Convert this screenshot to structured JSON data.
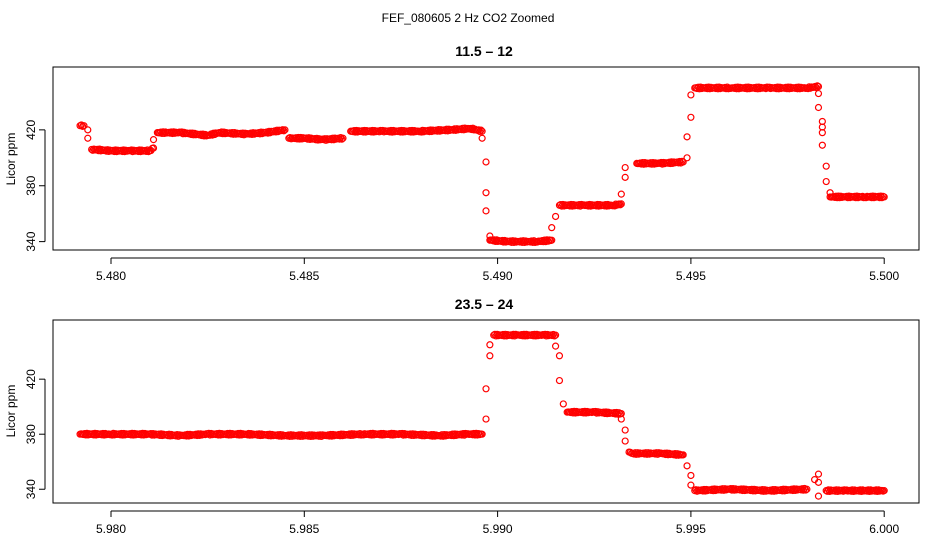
{
  "figure_title": "FEF_080605  2 Hz CO2 Zoomed",
  "colors": {
    "points": "#ff0000",
    "axis": "#000000",
    "background": "#ffffff"
  },
  "chart_data": [
    {
      "type": "scatter",
      "title": "11.5 – 12",
      "xlabel": "",
      "ylabel": "Licor ppm",
      "xlim": [
        5.4785,
        5.5009
      ],
      "ylim": [
        334,
        465
      ],
      "grid": false,
      "x_ticks": [
        5.48,
        5.485,
        5.49,
        5.495,
        5.5
      ],
      "x_tick_labels": [
        "5.480",
        "5.485",
        "5.490",
        "5.495",
        "5.500"
      ],
      "y_ticks": [
        340,
        380,
        420
      ],
      "y_tick_labels": [
        "340",
        "380",
        "420"
      ],
      "series": [
        {
          "values": [
            [
              5.4792,
              423
            ],
            [
              5.4793,
              423
            ],
            [
              5.4794,
              420
            ],
            [
              5.4794,
              414
            ],
            [
              5.4795,
              406
            ],
            [
              5.48,
              405
            ],
            [
              5.4805,
              405
            ],
            [
              5.481,
              405
            ],
            [
              5.4811,
              407
            ],
            [
              5.4811,
              413
            ],
            [
              5.4812,
              418
            ],
            [
              5.4818,
              418
            ],
            [
              5.4825,
              416
            ],
            [
              5.4828,
              418
            ],
            [
              5.4835,
              417
            ],
            [
              5.484,
              418
            ],
            [
              5.4845,
              420
            ],
            [
              5.4846,
              414
            ],
            [
              5.485,
              414
            ],
            [
              5.4855,
              413
            ],
            [
              5.486,
              414
            ],
            [
              5.4862,
              419
            ],
            [
              5.487,
              419
            ],
            [
              5.488,
              419
            ],
            [
              5.4888,
              420
            ],
            [
              5.4893,
              421
            ],
            [
              5.4896,
              419
            ],
            [
              5.4896,
              414
            ],
            [
              5.4897,
              397
            ],
            [
              5.4897,
              375
            ],
            [
              5.4897,
              362
            ],
            [
              5.4898,
              344
            ],
            [
              5.4898,
              341
            ],
            [
              5.4903,
              340
            ],
            [
              5.491,
              340
            ],
            [
              5.4914,
              341
            ],
            [
              5.4914,
              350
            ],
            [
              5.4915,
              358
            ],
            [
              5.4916,
              366
            ],
            [
              5.4922,
              366
            ],
            [
              5.493,
              366
            ],
            [
              5.4932,
              367
            ],
            [
              5.4932,
              374
            ],
            [
              5.4933,
              386
            ],
            [
              5.4933,
              393
            ],
            [
              5.4936,
              396
            ],
            [
              5.4942,
              396
            ],
            [
              5.4948,
              397
            ],
            [
              5.4949,
              400
            ],
            [
              5.4949,
              415
            ],
            [
              5.495,
              429
            ],
            [
              5.495,
              445
            ],
            [
              5.4951,
              450
            ],
            [
              5.496,
              450
            ],
            [
              5.497,
              450
            ],
            [
              5.498,
              450
            ],
            [
              5.4983,
              451
            ],
            [
              5.4983,
              446
            ],
            [
              5.4983,
              436
            ],
            [
              5.4984,
              426
            ],
            [
              5.4984,
              422
            ],
            [
              5.4984,
              418
            ],
            [
              5.4984,
              409
            ],
            [
              5.4985,
              394
            ],
            [
              5.4985,
              383
            ],
            [
              5.4986,
              375
            ],
            [
              5.4986,
              372
            ],
            [
              5.499,
              372
            ],
            [
              5.4995,
              372
            ],
            [
              5.5,
              372
            ]
          ]
        }
      ]
    },
    {
      "type": "scatter",
      "title": "23.5 – 24",
      "xlabel": "",
      "ylabel": "Licor ppm",
      "xlim": [
        5.9785,
        6.0009
      ],
      "ylim": [
        330,
        463
      ],
      "grid": false,
      "x_ticks": [
        5.98,
        5.985,
        5.99,
        5.995,
        6.0
      ],
      "x_tick_labels": [
        "5.980",
        "5.985",
        "5.990",
        "5.995",
        "6.000"
      ],
      "y_ticks": [
        340,
        380,
        420
      ],
      "y_tick_labels": [
        "340",
        "380",
        "420"
      ],
      "series": [
        {
          "values": [
            [
              5.9792,
              380
            ],
            [
              5.98,
              380
            ],
            [
              5.981,
              380
            ],
            [
              5.9818,
              379
            ],
            [
              5.9825,
              380
            ],
            [
              5.9835,
              380
            ],
            [
              5.9845,
              379
            ],
            [
              5.9855,
              379
            ],
            [
              5.9865,
              380
            ],
            [
              5.9875,
              380
            ],
            [
              5.9885,
              379
            ],
            [
              5.9892,
              380
            ],
            [
              5.9896,
              380
            ],
            [
              5.9897,
              391
            ],
            [
              5.9897,
              413
            ],
            [
              5.9898,
              437
            ],
            [
              5.9898,
              445
            ],
            [
              5.9899,
              452
            ],
            [
              5.9905,
              452
            ],
            [
              5.9912,
              452
            ],
            [
              5.9915,
              452
            ],
            [
              5.9915,
              444
            ],
            [
              5.9916,
              437
            ],
            [
              5.9916,
              419
            ],
            [
              5.9917,
              402
            ],
            [
              5.9918,
              396
            ],
            [
              5.9925,
              396
            ],
            [
              5.9932,
              395
            ],
            [
              5.9932,
              391
            ],
            [
              5.9933,
              383
            ],
            [
              5.9933,
              375
            ],
            [
              5.9934,
              367
            ],
            [
              5.9935,
              366
            ],
            [
              5.9942,
              366
            ],
            [
              5.9948,
              365
            ],
            [
              5.9949,
              357
            ],
            [
              5.995,
              350
            ],
            [
              5.995,
              343
            ],
            [
              5.9951,
              339
            ],
            [
              5.996,
              340
            ],
            [
              5.997,
              339
            ],
            [
              5.998,
              340
            ],
            [
              5.9982,
              347
            ],
            [
              5.9983,
              351
            ],
            [
              5.9983,
              345
            ],
            [
              5.9983,
              335
            ],
            [
              5.9985,
              339
            ],
            [
              5.999,
              339
            ],
            [
              5.9995,
              339
            ],
            [
              6.0,
              339
            ]
          ]
        }
      ]
    }
  ]
}
